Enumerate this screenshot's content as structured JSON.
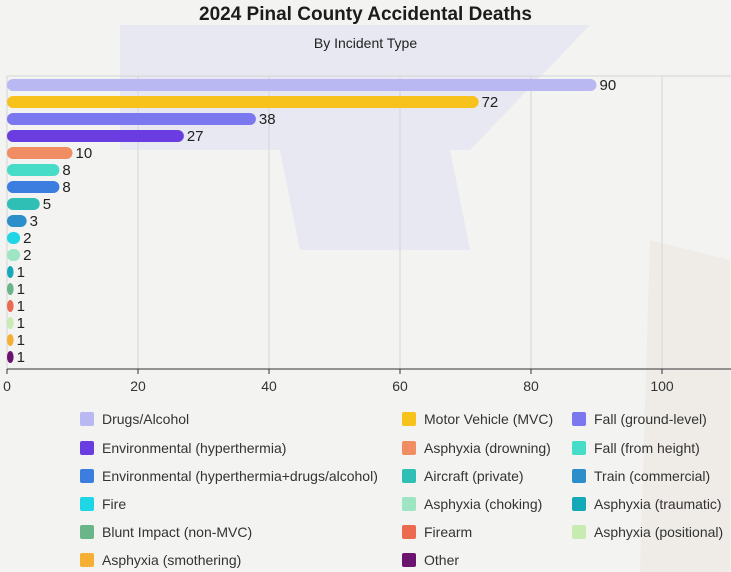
{
  "chart_data": {
    "type": "bar",
    "orientation": "horizontal",
    "title": "2024 Pinal County Accidental Deaths",
    "subtitle": "By Incident Type",
    "xlabel": "",
    "ylabel": "",
    "xlim": [
      0,
      110
    ],
    "xticks": [
      0,
      20,
      40,
      60,
      80,
      100
    ],
    "grid": true,
    "legend_position": "bottom",
    "categories": [
      "Drugs/Alcohol",
      "Motor Vehicle (MVC)",
      "Fall (ground-level)",
      "Environmental (hyperthermia)",
      "Asphyxia (drowning)",
      "Fall (from height)",
      "Environmental (hyperthermia+drugs/alcohol)",
      "Aircraft (private)",
      "Train (commercial)",
      "Fire",
      "Asphyxia (choking)",
      "Asphyxia (traumatic)",
      "Blunt Impact (non-MVC)",
      "Firearm",
      "Asphyxia (positional)",
      "Asphyxia (smothering)",
      "Other"
    ],
    "values": [
      90,
      72,
      38,
      27,
      10,
      8,
      8,
      5,
      3,
      2,
      2,
      1,
      1,
      1,
      1,
      1,
      1
    ],
    "colors": [
      "#b9b8f2",
      "#f7c21b",
      "#7b78ef",
      "#6a3de0",
      "#f08d62",
      "#47dcc8",
      "#3b7ee0",
      "#2fbfb5",
      "#2d8fc9",
      "#1fd6e6",
      "#9ee5c4",
      "#14a8b8",
      "#6ab58a",
      "#eb6a50",
      "#c7ebb0",
      "#f5b034",
      "#6a1470"
    ]
  }
}
